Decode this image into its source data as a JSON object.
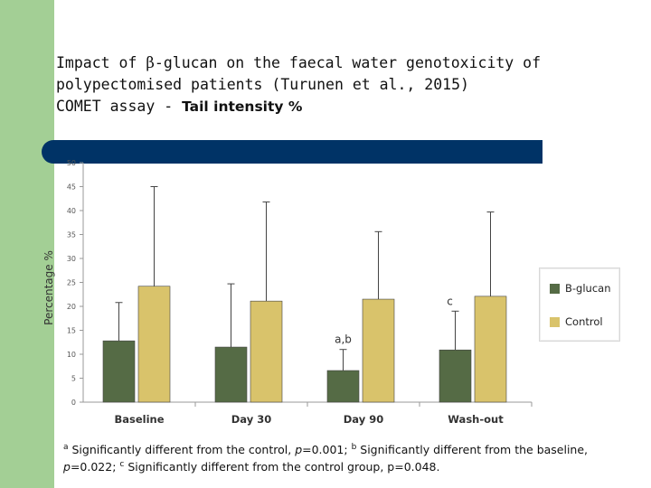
{
  "slide": {
    "title_line1_pre": "Impact of ",
    "title_beta": "β",
    "title_line1_post": "-glucan on the faecal water genotoxicity of",
    "title_line2": "polypectomised patients (Turunen et al., 2015)",
    "title_line3_pre": "COMET assay - ",
    "title_line3_bold": "Tail intensity %"
  },
  "footnote": {
    "sup_a": "a",
    "text_a": " Significantly different from the control, ",
    "p_label_a": "p",
    "val_a": "=0.001; ",
    "sup_b": "b",
    "text_b": " Significantly different from the baseline, ",
    "p_label_b": "p",
    "val_b": "=0.022; ",
    "sup_c": "c",
    "text_c": " Significantly different from the control group, p=0.048."
  },
  "colors": {
    "bglucan": "#556b45",
    "control": "#d9c36b",
    "accent_bar": "#003366",
    "background_green": "#a3cf95"
  },
  "chart_data": {
    "type": "bar",
    "ylabel": "Percentage %",
    "ylim": [
      0,
      50
    ],
    "yticks": [
      0,
      5,
      10,
      15,
      20,
      25,
      30,
      35,
      40,
      45,
      50
    ],
    "categories": [
      "Baseline",
      "Day 30",
      "Day 90",
      "Wash-out"
    ],
    "series": [
      {
        "name": "B-glucan",
        "values": [
          12.8,
          11.5,
          6.6,
          10.9
        ],
        "error_upper": [
          20.8,
          24.7,
          11.0,
          19.0
        ]
      },
      {
        "name": "Control",
        "values": [
          24.2,
          21.1,
          21.5,
          22.1
        ],
        "error_upper": [
          45.0,
          41.8,
          35.6,
          39.7
        ]
      }
    ],
    "annotations": [
      {
        "text": "a,b",
        "category": "Day 90",
        "series": "B-glucan"
      },
      {
        "text": "c",
        "category": "Wash-out",
        "series": "B-glucan"
      }
    ],
    "legend": "right",
    "grid": false
  }
}
